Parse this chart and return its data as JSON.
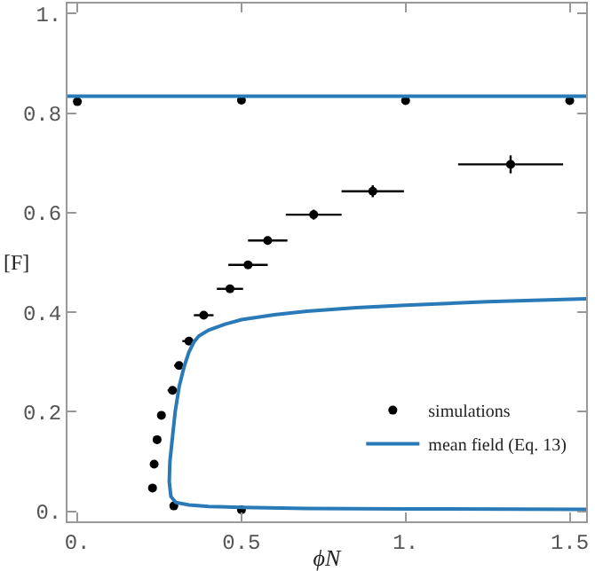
{
  "chart_data": {
    "type": "scatter",
    "xlabel": "ϕN",
    "ylabel": "[F]",
    "xlim": [
      -0.03,
      1.55
    ],
    "ylim": [
      -0.02,
      1.02
    ],
    "xticks": [
      {
        "value": 0,
        "label": "0."
      },
      0.5,
      {
        "value": 1,
        "label": "1."
      },
      1.5
    ],
    "yticks": [
      {
        "value": 0,
        "label": "0."
      },
      0.2,
      0.4,
      0.6,
      0.8,
      {
        "value": 1,
        "label": "1."
      }
    ],
    "grid": false,
    "legend": "bottom right",
    "marker": "circle",
    "series": [
      {
        "name": "simulations",
        "color": "#000000",
        "x": [
          0,
          0.5,
          1.0,
          1.5,
          0.5,
          0.294,
          0.229,
          0.234,
          0.243,
          0.256,
          0.29,
          0.31,
          0.34,
          0.385,
          0.465,
          0.52,
          0.58,
          0.72,
          0.9,
          1.32
        ],
        "values": [
          0.823,
          0.826,
          0.825,
          0.825,
          0.003,
          0.011,
          0.047,
          0.095,
          0.144,
          0.193,
          0.243,
          0.293,
          0.342,
          0.394,
          0.447,
          0.495,
          0.544,
          0.596,
          0.643,
          0.697
        ],
        "xerrors": [
          null,
          null,
          null,
          null,
          null,
          0.01,
          null,
          null,
          null,
          0.01,
          0.015,
          0.015,
          0.02,
          0.03,
          0.04,
          0.06,
          0.06,
          0.085,
          0.095,
          0.16
        ],
        "errors": [
          null,
          null,
          null,
          null,
          null,
          null,
          null,
          null,
          null,
          null,
          null,
          null,
          null,
          null,
          null,
          null,
          null,
          0.01,
          0.012,
          0.018
        ]
      },
      {
        "name": "mean field (Eq. 13)",
        "type": "line",
        "color": "#2a7ab8",
        "marker": "none",
        "line_style": "solid",
        "x": [
          1.55,
          1.0,
          0.7,
          0.5,
          0.4,
          0.34,
          0.3,
          0.285,
          0.28,
          0.282,
          0.29,
          0.298,
          0.31,
          0.325,
          0.34,
          0.355,
          0.37,
          0.4,
          0.45,
          0.5,
          0.6,
          0.7,
          0.85,
          1.0,
          1.25,
          1.55,
          null,
          -0.03,
          1.55
        ],
        "values": [
          0.004,
          0.005,
          0.006,
          0.008,
          0.01,
          0.013,
          0.018,
          0.03,
          0.06,
          0.1,
          0.15,
          0.2,
          0.25,
          0.29,
          0.32,
          0.34,
          0.352,
          0.364,
          0.376,
          0.385,
          0.395,
          0.402,
          0.409,
          0.414,
          0.421,
          0.427,
          null,
          0.834,
          0.834
        ]
      }
    ]
  }
}
